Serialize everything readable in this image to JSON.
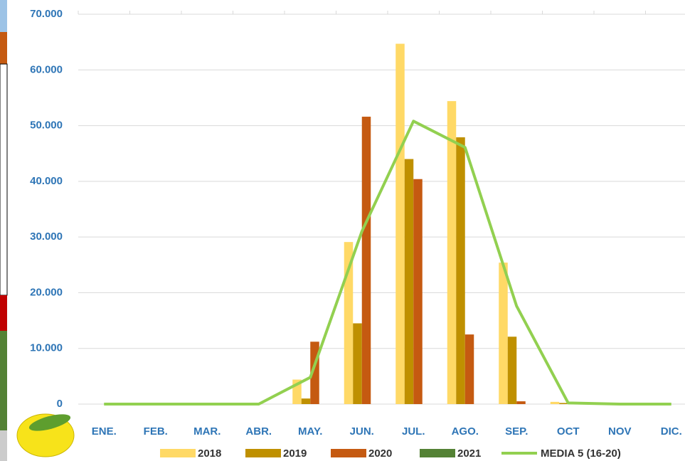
{
  "chart_data": {
    "type": "bar",
    "categories": [
      "ENE.",
      "FEB.",
      "MAR.",
      "ABR.",
      "MAY.",
      "JUN.",
      "JUL.",
      "AGO.",
      "SEP.",
      "OCT",
      "NOV",
      "DIC."
    ],
    "series": [
      {
        "name": "2018",
        "color": "#FFD966",
        "values": [
          0,
          0,
          0,
          0,
          4400,
          29100,
          64700,
          54400,
          25400,
          400,
          0,
          0
        ]
      },
      {
        "name": "2019",
        "color": "#BF9000",
        "values": [
          0,
          0,
          0,
          0,
          1000,
          14500,
          44000,
          47900,
          12100,
          200,
          0,
          0
        ]
      },
      {
        "name": "2020",
        "color": "#C55A11",
        "values": [
          0,
          0,
          0,
          0,
          11200,
          51600,
          40400,
          12500,
          500,
          0,
          0,
          0
        ]
      },
      {
        "name": "2021",
        "color": "#548235",
        "values": [
          0,
          0,
          0,
          0,
          0,
          0,
          0,
          0,
          0,
          0,
          0,
          0
        ]
      },
      {
        "name": "MEDIA 5 (16-20)",
        "color": "#92D050",
        "type": "line",
        "values": [
          0,
          0,
          0,
          0,
          4800,
          31000,
          50800,
          46100,
          17600,
          200,
          0,
          0
        ]
      }
    ],
    "ylim": [
      0,
      70000
    ],
    "yticks": [
      {
        "value": 0,
        "label": "0"
      },
      {
        "value": 10000,
        "label": "10.000"
      },
      {
        "value": 20000,
        "label": "20.000"
      },
      {
        "value": 30000,
        "label": "30.000"
      },
      {
        "value": 40000,
        "label": "40.000"
      },
      {
        "value": 50000,
        "label": "50.000"
      },
      {
        "value": 60000,
        "label": "60.000"
      },
      {
        "value": 70000,
        "label": "70.000"
      }
    ],
    "grid": true,
    "legend": "bottom"
  }
}
